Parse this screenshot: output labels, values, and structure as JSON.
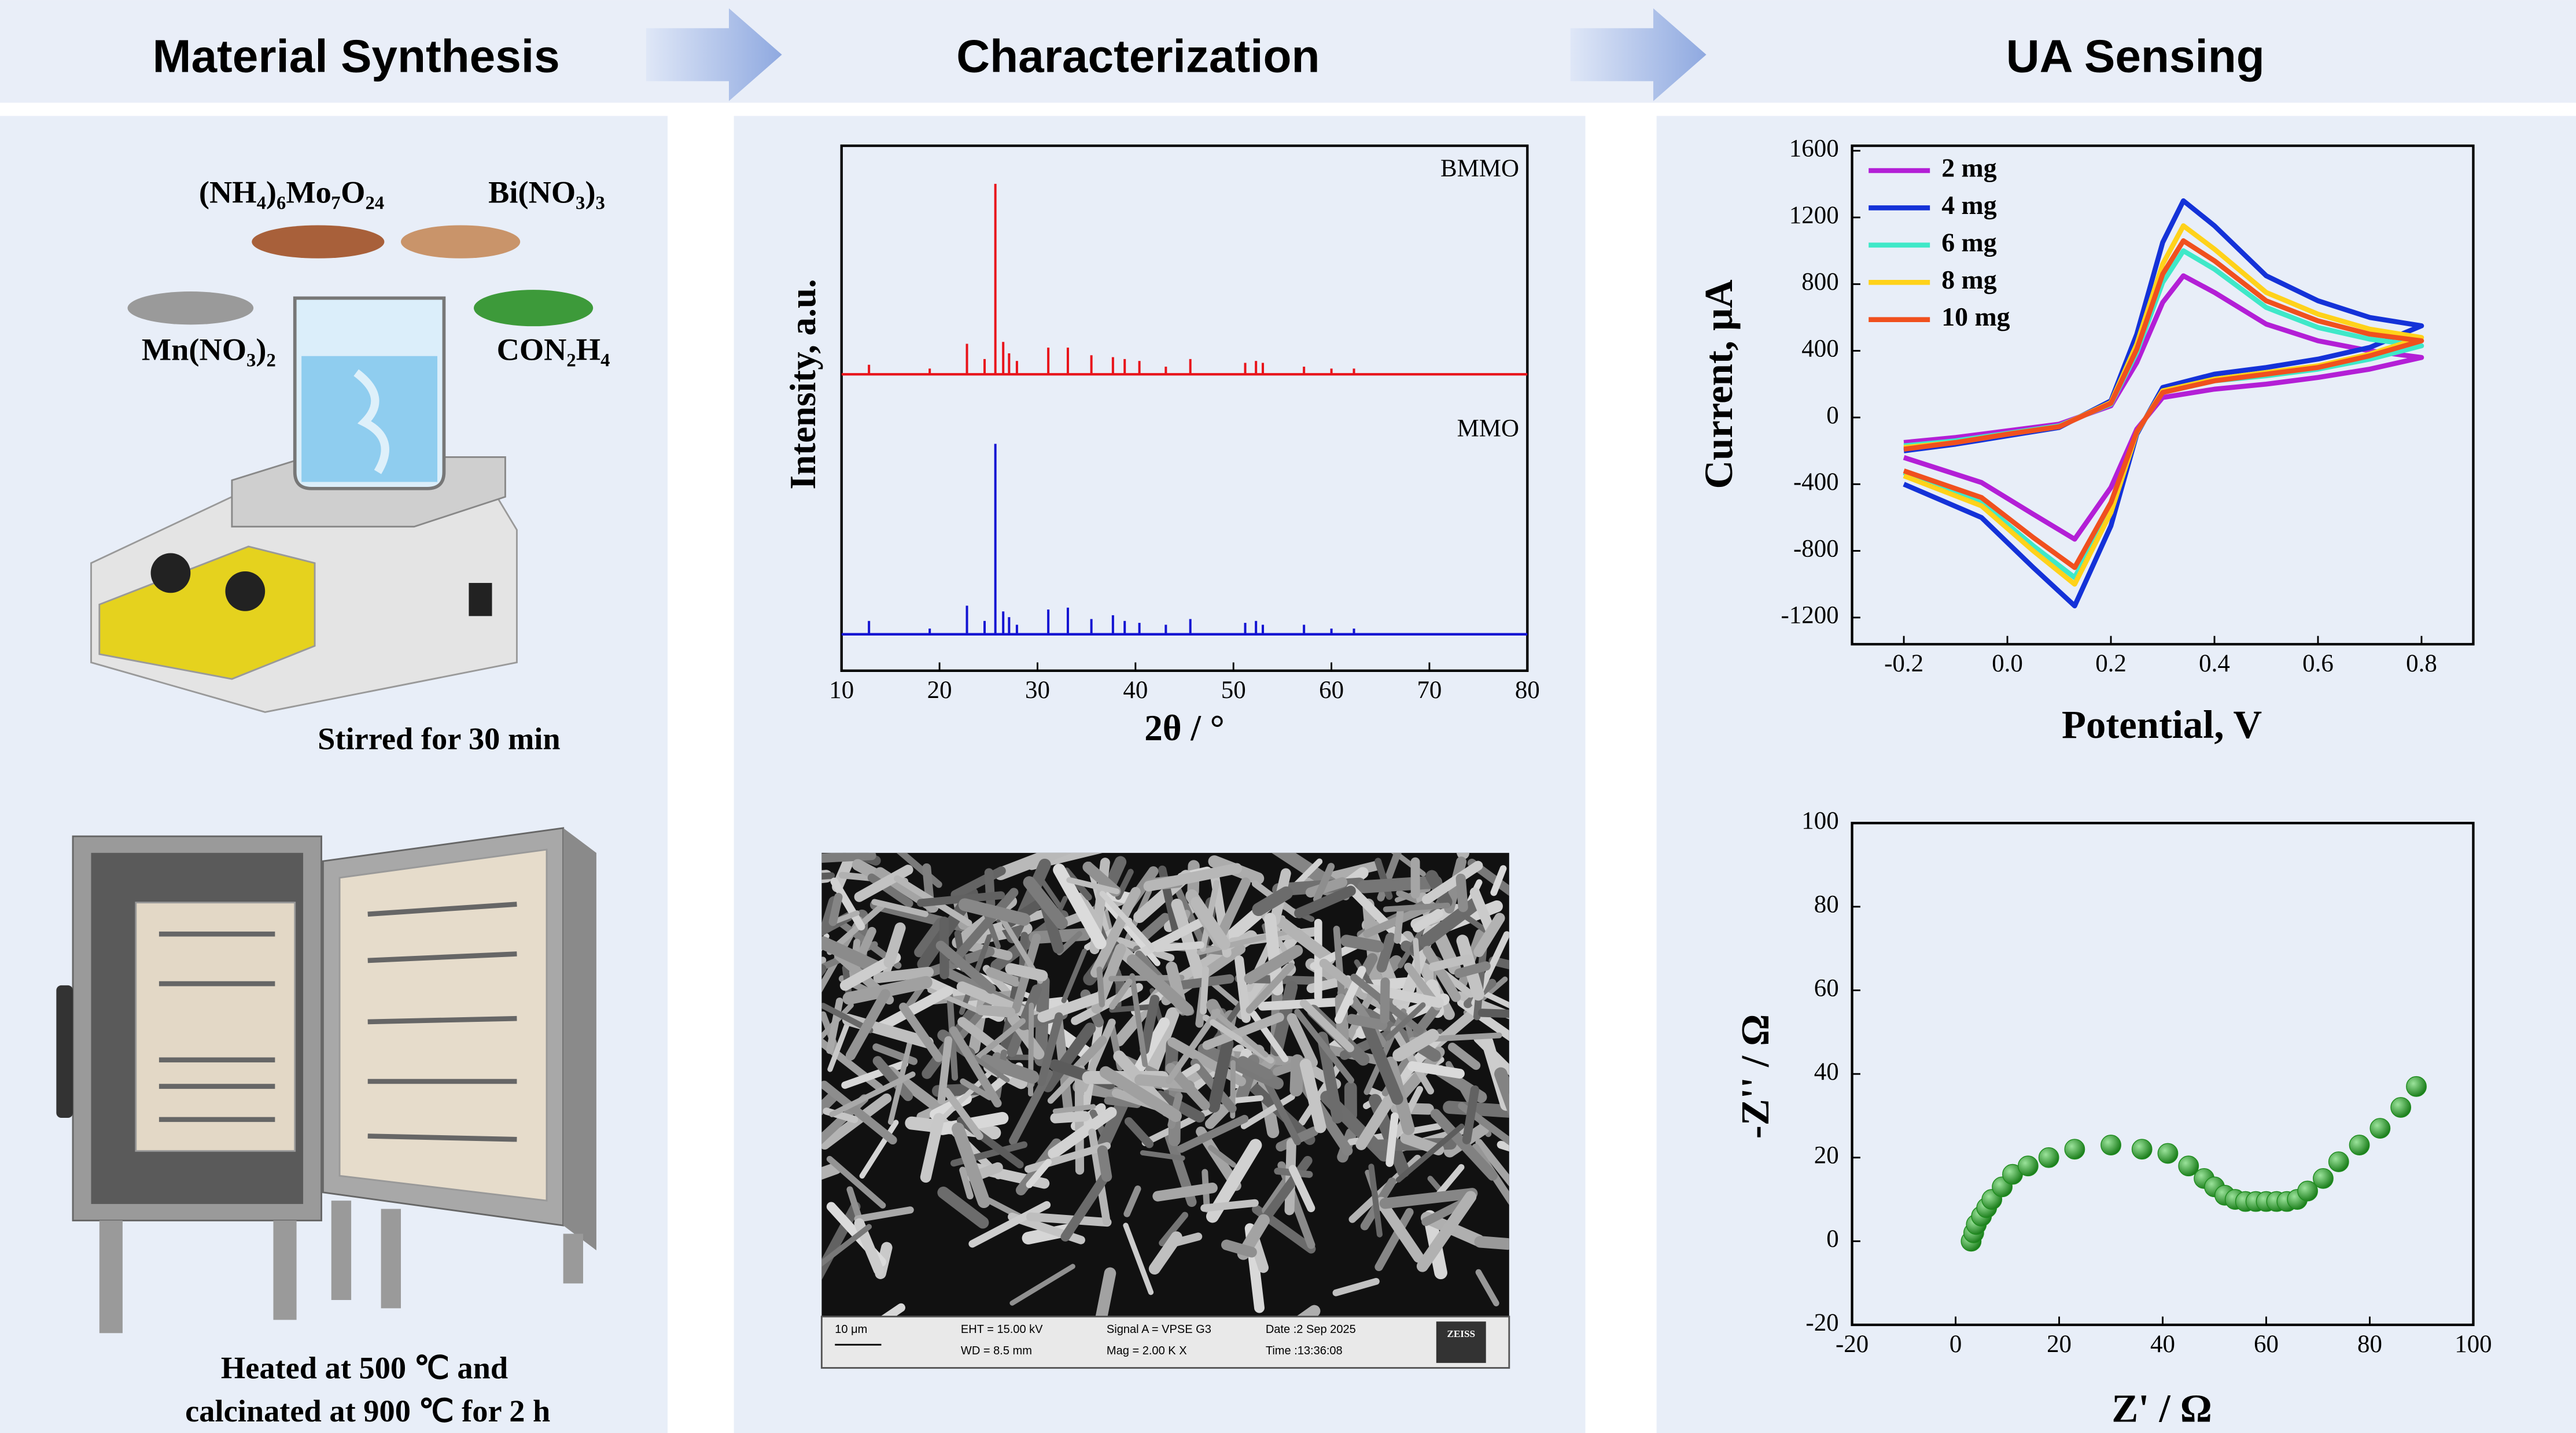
{
  "header": {
    "steps": [
      "Material Synthesis",
      "Characterization",
      "UA Sensing"
    ]
  },
  "synthesis": {
    "reagents": [
      "(NH₄)₆Mo₇O₂₄",
      "Bi(NO₃)₃",
      "Mn(NO₃)₂",
      "CON₂H₄"
    ],
    "stir_caption": "Stirred for 30 min",
    "heat_caption": [
      "Heated at 500 ℃ and",
      "calcinated at 900 ℃ for 2 h"
    ]
  },
  "sem": {
    "scale_bar": "10 μm",
    "info": [
      "EHT = 15.00 kV",
      "WD = 8.5 mm",
      "Signal A = VPSE G3",
      "Mag = 2.00 K X",
      "Date :2 Sep 2025",
      "Time :13:36:08"
    ],
    "brand": "ZEISS"
  },
  "chart_data": [
    {
      "type": "xrd",
      "x_label": "2θ / °",
      "y_label": "Intensity, a.u.",
      "xlim": [
        10,
        80
      ],
      "xticks": [
        10,
        20,
        30,
        40,
        50,
        60,
        70,
        80
      ],
      "x": [
        12.8,
        19,
        22.8,
        24.6,
        25.7,
        26.5,
        27.1,
        27.9,
        31.1,
        33.1,
        35.5,
        37.7,
        38.9,
        40.4,
        43.1,
        45.6,
        51.2,
        52.3,
        53,
        57.2,
        60,
        62.3
      ],
      "series": [
        {
          "name": "BMMO",
          "color": "#e8141b",
          "values": [
            5,
            3,
            16,
            8,
            100,
            17,
            11,
            7,
            14,
            14,
            10,
            9,
            8,
            7,
            4,
            8,
            6,
            7,
            6,
            4,
            3,
            3
          ]
        },
        {
          "name": "MMO",
          "color": "#1414d2",
          "values": [
            7,
            3,
            15,
            7,
            100,
            12,
            9,
            5,
            13,
            14,
            8,
            10,
            7,
            6,
            5,
            8,
            6,
            7,
            5,
            5,
            3,
            3
          ]
        }
      ]
    },
    {
      "type": "line",
      "x_label": "Potential, V",
      "y_label": "Current, μA",
      "xlim": [
        -0.3,
        0.9
      ],
      "xticks": [
        -0.2,
        {
          "value": 0,
          "label": "0.0"
        },
        0.2,
        0.4,
        0.6,
        0.8
      ],
      "ylim": [
        -1360,
        1630
      ],
      "yticks": [
        -1200,
        -800,
        -400,
        0,
        400,
        800,
        1200,
        1600
      ],
      "legend": "upper left",
      "x": [
        -0.2,
        -0.1,
        0,
        0.1,
        0.2,
        0.25,
        0.3,
        0.34,
        0.4,
        0.5,
        0.6,
        0.7,
        0.8,
        0.8,
        0.7,
        0.6,
        0.5,
        0.4,
        0.3,
        0.25,
        0.2,
        0.13,
        0.05,
        -0.05,
        -0.2
      ],
      "series": [
        {
          "name": "2 mg",
          "color": "#b31fd6",
          "values": [
            -150,
            -120,
            -80,
            -40,
            70,
            330,
            690,
            850,
            750,
            560,
            460,
            400,
            360,
            360,
            290,
            240,
            200,
            170,
            120,
            -70,
            -420,
            -730,
            -580,
            -390,
            -240
          ]
        },
        {
          "name": "4 mg",
          "color": "#1432d8",
          "values": [
            -200,
            -160,
            -110,
            -60,
            100,
            500,
            1050,
            1300,
            1150,
            850,
            700,
            600,
            550,
            550,
            420,
            350,
            300,
            260,
            180,
            -100,
            -650,
            -1130,
            -900,
            -600,
            -400
          ]
        },
        {
          "name": "6 mg",
          "color": "#3fe8c8",
          "values": [
            -170,
            -140,
            -95,
            -50,
            80,
            390,
            810,
            1000,
            890,
            660,
            540,
            470,
            430,
            430,
            350,
            290,
            250,
            220,
            150,
            -85,
            -550,
            -960,
            -770,
            -510,
            -330
          ]
        },
        {
          "name": "8 mg",
          "color": "#ffd21a",
          "values": [
            -180,
            -150,
            -100,
            -55,
            90,
            440,
            920,
            1150,
            1010,
            750,
            620,
            530,
            480,
            480,
            380,
            310,
            270,
            230,
            160,
            -90,
            -570,
            -1000,
            -800,
            -530,
            -350
          ]
        },
        {
          "name": "10 mg",
          "color": "#f0501e",
          "values": [
            -190,
            -150,
            -100,
            -55,
            85,
            410,
            860,
            1060,
            940,
            700,
            580,
            500,
            460,
            460,
            370,
            300,
            260,
            220,
            150,
            -85,
            -510,
            -900,
            -720,
            -480,
            -320
          ]
        }
      ]
    },
    {
      "type": "scatter",
      "x_label": "Z' / Ω",
      "y_label": "-Z'' / Ω",
      "xlim": [
        -20,
        100
      ],
      "xticks": [
        -20,
        0,
        20,
        40,
        60,
        80,
        100
      ],
      "ylim": [
        -20,
        100
      ],
      "yticks": [
        -20,
        0,
        20,
        40,
        60,
        80,
        100
      ],
      "color": "#1e8c1e",
      "x": [
        3,
        3.5,
        4,
        5,
        6,
        7,
        9,
        11,
        14,
        18,
        23,
        30,
        36,
        41,
        45,
        48,
        50,
        52,
        54,
        56,
        58,
        60,
        62,
        64,
        66,
        68,
        71,
        74,
        78,
        82,
        86,
        89
      ],
      "values": [
        0,
        2,
        4,
        6,
        8,
        10,
        13,
        16,
        18,
        20,
        22,
        23,
        22,
        21,
        18,
        15,
        13,
        11,
        10,
        9.5,
        9.5,
        9.5,
        9.5,
        9.5,
        10,
        12,
        15,
        19,
        23,
        27,
        32,
        37
      ]
    }
  ]
}
